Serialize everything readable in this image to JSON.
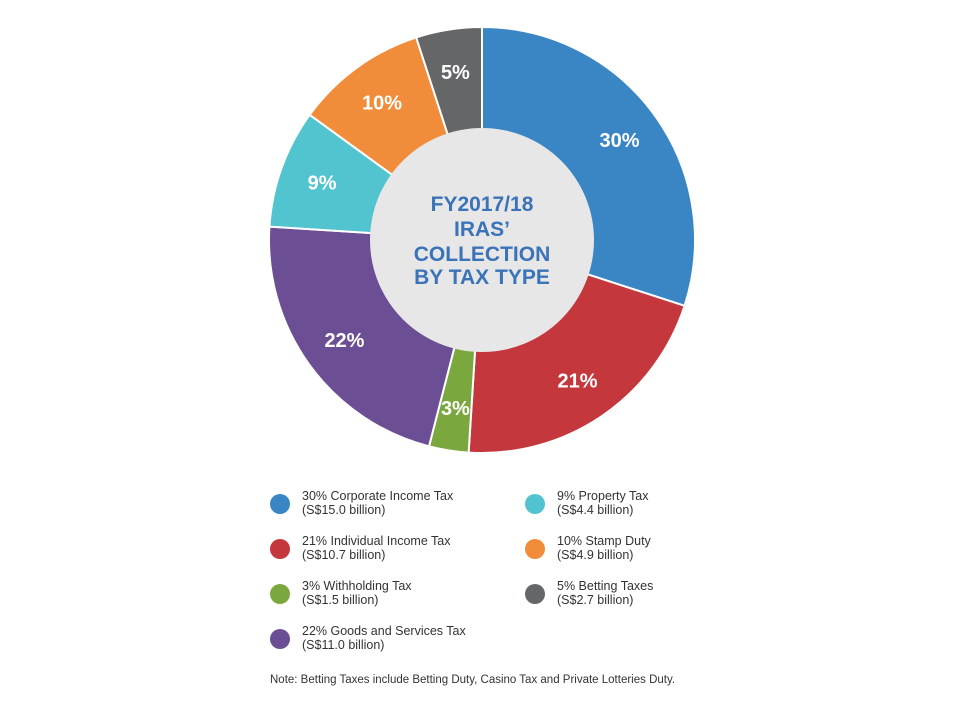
{
  "chart_data": {
    "type": "pie",
    "title": "FY2017/18 IRAS’ COLLECTION BY TAX TYPE",
    "title_lines": [
      "FY2017/18",
      "IRAS’",
      "COLLECTION",
      "BY TAX TYPE"
    ],
    "slices": [
      {
        "label": "30%",
        "value": 30,
        "color": "#3a85c3",
        "legend_line1": "30% Corporate Income Tax",
        "legend_line2": "(S$15.0 billion)"
      },
      {
        "label": "21%",
        "value": 21,
        "color": "#c4373d",
        "legend_line1": "21% Individual Income Tax",
        "legend_line2": "(S$10.7 billion)"
      },
      {
        "label": "3%",
        "value": 3,
        "color": "#7ba73f",
        "legend_line1": "3% Withholding Tax",
        "legend_line2": "(S$1.5 billion)"
      },
      {
        "label": "22%",
        "value": 22,
        "color": "#6b4e94",
        "legend_line1": "22% Goods and Services Tax",
        "legend_line2": "(S$11.0 billion)"
      },
      {
        "label": "9%",
        "value": 9,
        "color": "#52c4cf",
        "legend_line1": "9% Property Tax",
        "legend_line2": "(S$4.4 billion)"
      },
      {
        "label": "10%",
        "value": 10,
        "color": "#f18c3a",
        "legend_line1": "10% Stamp Duty",
        "legend_line2": "(S$4.9 billion)"
      },
      {
        "label": "5%",
        "value": 5,
        "color": "#656668",
        "legend_line1": "5% Betting Taxes",
        "legend_line2": "(S$2.7 billion)"
      }
    ],
    "legend_order": [
      0,
      4,
      1,
      5,
      2,
      6,
      3
    ],
    "hole_color": "#e7e7e8",
    "title_color": "#3b73b9"
  },
  "note": "Note: Betting Taxes include Betting Duty, Casino Tax and Private Lotteries Duty."
}
